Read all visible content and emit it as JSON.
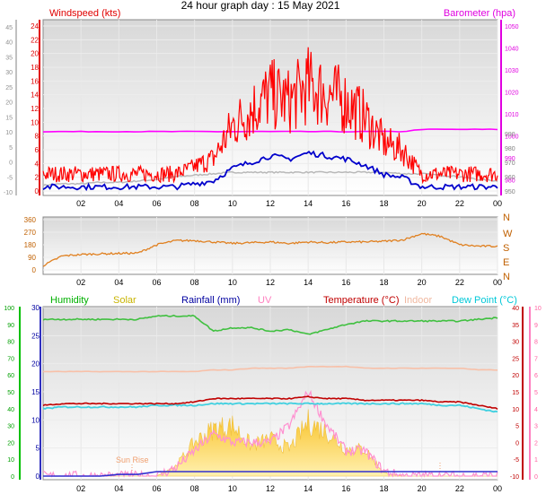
{
  "page": {
    "title": "24 hour graph day : 15 May 2021"
  },
  "panels": {
    "wind": {
      "title_left": "Windspeed (kts)",
      "title_right": "Barometer (hpa)",
      "left_outer_ticks": [
        "-10",
        "-5",
        "0",
        "5",
        "10",
        "15",
        "20",
        "25",
        "30",
        "35",
        "40",
        "45"
      ],
      "left_ticks": [
        "0",
        "2",
        "4",
        "6",
        "8",
        "10",
        "12",
        "14",
        "16",
        "18",
        "20",
        "22",
        "24"
      ],
      "right_ticks": [
        "980",
        "990",
        "1000",
        "1010",
        "1020",
        "1030",
        "1040",
        "1050"
      ],
      "right_aux_ticks": [
        "950",
        "960",
        "970",
        "980",
        "990"
      ]
    },
    "direction": {
      "left_ticks": [
        "0",
        "90",
        "180",
        "270",
        "360"
      ],
      "right_labels": [
        "N",
        "E",
        "S",
        "W",
        "N"
      ]
    },
    "multi": {
      "headings": [
        {
          "text": "Humidity",
          "color": "#00b000"
        },
        {
          "text": "Solar",
          "color": "#c8b400"
        },
        {
          "text": "Rainfall (mm)",
          "color": "#0000a0"
        },
        {
          "text": "UV",
          "color": "#ff80c0"
        },
        {
          "text": "Temperature (°C)",
          "color": "#c00000"
        },
        {
          "text": "Indoor",
          "color": "#f0b8a0"
        },
        {
          "text": "Dew Point (°C)",
          "color": "#00c8d8"
        }
      ],
      "humidity_ticks": [
        "0",
        "10",
        "20",
        "30",
        "40",
        "50",
        "60",
        "70",
        "80",
        "90",
        "100"
      ],
      "rain_ticks": [
        "0",
        "5",
        "10",
        "15",
        "20",
        "25",
        "30"
      ],
      "temp_ticks": [
        "-10",
        "-5",
        "0",
        "5",
        "10",
        "15",
        "20",
        "25",
        "30",
        "35",
        "40"
      ],
      "uv_ticks": [
        "0",
        "1",
        "2",
        "3",
        "4",
        "5",
        "6",
        "7",
        "8",
        "9",
        "10"
      ],
      "sunrise_label": "Sun Rise"
    },
    "x_ticks": [
      "02",
      "04",
      "06",
      "08",
      "10",
      "12",
      "14",
      "16",
      "18",
      "20",
      "22",
      "00"
    ]
  },
  "colors": {
    "windspeed": "#ff0000",
    "wind_avg": "#0000cc",
    "barometer": "#ff00ff",
    "gray_line": "#b8b8b8",
    "direction": "#e08020",
    "humidity": "#40c040",
    "temperature": "#c00000",
    "dewpoint": "#40d0e0",
    "indoor": "#f8c0a8",
    "solar": "#f0c040",
    "uv": "#ff90d0",
    "rain": "#3030d0"
  },
  "chart_data": [
    {
      "type": "line",
      "title": "Windspeed (kts)",
      "x_hours": [
        0,
        1,
        2,
        3,
        4,
        5,
        6,
        7,
        8,
        9,
        10,
        11,
        12,
        13,
        14,
        15,
        16,
        17,
        18,
        19,
        20,
        21,
        22,
        23,
        24
      ],
      "series": [
        {
          "name": "Windspeed (kts)",
          "values": [
            2,
            2,
            2,
            2,
            2,
            2,
            2,
            2,
            3,
            4,
            8,
            10,
            12,
            11,
            13,
            12,
            11,
            9,
            6,
            5,
            2,
            2,
            2,
            2,
            2
          ]
        },
        {
          "name": "Barometer (hpa)",
          "values": [
            1002,
            1002,
            1002,
            1002,
            1002,
            1002,
            1002,
            1002,
            1002,
            1002,
            1002,
            1002,
            1002,
            1002,
            1002,
            1002,
            1002,
            1002,
            1002,
            1002,
            1003,
            1003,
            1003,
            1003,
            1003
          ]
        }
      ],
      "ylim_left": [
        0,
        25
      ],
      "ylim_right": [
        975,
        1050
      ]
    },
    {
      "type": "line",
      "x_hours": [
        0,
        1,
        2,
        3,
        4,
        5,
        6,
        7,
        8,
        9,
        10,
        11,
        12,
        13,
        14,
        15,
        16,
        17,
        18,
        19,
        20,
        21,
        22,
        23,
        24
      ],
      "series": [
        {
          "values": [
            30,
            100,
            110,
            115,
            118,
            120,
            180,
            210,
            210,
            200,
            190,
            195,
            200,
            190,
            200,
            195,
            200,
            200,
            205,
            215,
            260,
            240,
            180,
            170,
            170
          ]
        }
      ],
      "ylim": [
        0,
        360
      ]
    },
    {
      "type": "line",
      "x_hours": [
        0,
        1,
        2,
        3,
        4,
        5,
        6,
        7,
        8,
        9,
        10,
        11,
        12,
        13,
        14,
        15,
        16,
        17,
        18,
        19,
        20,
        21,
        22,
        23,
        24
      ],
      "series": [
        {
          "name": "Humidity",
          "values": [
            93,
            93,
            93,
            93,
            93,
            93,
            95,
            95,
            95,
            86,
            88,
            88,
            86,
            87,
            84,
            87,
            90,
            92,
            92,
            92,
            92,
            92,
            92,
            93,
            94
          ]
        },
        {
          "name": "Temperature (°C)",
          "values": [
            11,
            11.5,
            11.5,
            11.5,
            11.5,
            11.5,
            11.5,
            11.5,
            12,
            13,
            13,
            13,
            13,
            13,
            13.5,
            13,
            13,
            12.5,
            12.5,
            12.5,
            12.5,
            12,
            12,
            11,
            10
          ]
        },
        {
          "name": "Dew Point (°C)",
          "values": [
            10,
            10.5,
            10.5,
            10.5,
            10.5,
            10.5,
            11,
            11,
            11,
            11.5,
            11.5,
            11.5,
            11.5,
            11.5,
            11.5,
            11.5,
            11.5,
            11.5,
            11.5,
            11.5,
            11.5,
            11,
            11,
            10,
            9
          ]
        },
        {
          "name": "Indoor",
          "values": [
            21,
            21,
            21,
            21,
            21,
            21,
            21,
            21,
            21,
            21.5,
            21.5,
            22,
            22,
            22,
            22.5,
            22.5,
            22.5,
            22,
            22,
            22,
            22,
            22,
            22,
            21.5,
            21.5
          ]
        },
        {
          "name": "Solar",
          "values": [
            0,
            0,
            0,
            0,
            0,
            0,
            0,
            3,
            10,
            14,
            15,
            9,
            11,
            8,
            16,
            13,
            8,
            8,
            1,
            0,
            0,
            0,
            0,
            0,
            0
          ]
        },
        {
          "name": "UV",
          "values": [
            0,
            0,
            0,
            0,
            0,
            0,
            0,
            0.5,
            1.5,
            2.5,
            2,
            2,
            2,
            3,
            5,
            3,
            1.5,
            1.5,
            0.3,
            0,
            0,
            0,
            0,
            0,
            0
          ]
        },
        {
          "name": "Rainfall (mm)",
          "values": [
            0,
            0,
            0,
            0,
            0.3,
            0.3,
            0.8,
            0.8,
            0.8,
            0.8,
            0.8,
            0.8,
            0.8,
            0.8,
            0.8,
            0.8,
            0.8,
            0.8,
            0.8,
            0.8,
            0.8,
            0.8,
            0.8,
            0.8,
            0.8
          ]
        }
      ],
      "ylim_humidity": [
        0,
        100
      ],
      "ylim_temperature": [
        -10,
        40
      ]
    }
  ]
}
